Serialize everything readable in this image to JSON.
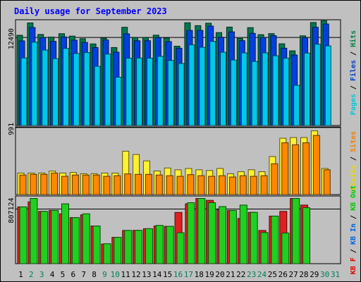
{
  "chart_data": [
    {
      "type": "bar",
      "title": "Daily usage for September 2023",
      "ylabel_parts": [
        {
          "text": "Pages",
          "color": "#00C8DC"
        },
        {
          "text": "Files",
          "color": "#0040C8"
        },
        {
          "text": "Hits",
          "color": "#008040"
        }
      ],
      "ytick": "12490",
      "ymax": 15000,
      "categories": [
        "1",
        "2",
        "3",
        "4",
        "5",
        "6",
        "7",
        "8",
        "9",
        "10",
        "11",
        "12",
        "13",
        "14",
        "15",
        "16",
        "17",
        "18",
        "19",
        "20",
        "21",
        "22",
        "23",
        "24",
        "25",
        "26",
        "27",
        "28",
        "29",
        "30",
        "31"
      ],
      "weekend_days": [
        "2",
        "3",
        "9",
        "10",
        "16",
        "17",
        "23",
        "24",
        "30",
        "31"
      ],
      "series": [
        {
          "name": "Hits",
          "color": "#007850",
          "values": [
            12800,
            14550,
            12910,
            12540,
            13020,
            12680,
            12310,
            11570,
            12390,
            11060,
            13930,
            12480,
            12480,
            12810,
            12410,
            11250,
            14570,
            14160,
            14510,
            13180,
            13960,
            12350,
            13880,
            12880,
            13030,
            11590,
            10590,
            12720,
            14610,
            14860,
            null
          ]
        },
        {
          "name": "Files",
          "color": "#0040E0",
          "values": [
            12000,
            13900,
            12450,
            11930,
            12560,
            12100,
            11780,
            11060,
            12130,
            10400,
            13000,
            12020,
            12030,
            12460,
            11900,
            10960,
            13480,
            13490,
            14100,
            12510,
            13280,
            12030,
            13070,
            12470,
            12740,
            10960,
            10000,
            12450,
            13940,
            14400,
            null
          ]
        },
        {
          "name": "Pages",
          "color": "#00C8E8",
          "values": [
            9580,
            11820,
            10700,
            9480,
            10930,
            10210,
            10340,
            8390,
            10130,
            6850,
            9550,
            9570,
            9550,
            9810,
            9220,
            8800,
            11440,
            11090,
            11920,
            10390,
            9280,
            10290,
            9080,
            10310,
            9890,
            9540,
            5690,
            10270,
            11520,
            11290,
            null
          ]
        }
      ]
    },
    {
      "type": "bar",
      "ylabel_parts": [
        {
          "text": "Visits",
          "color": "#E8D800"
        },
        {
          "text": "Sites",
          "color": "#F08000"
        }
      ],
      "ytick": "991",
      "ymax": 1000,
      "categories": [
        "1",
        "2",
        "3",
        "4",
        "5",
        "6",
        "7",
        "8",
        "9",
        "10",
        "11",
        "12",
        "13",
        "14",
        "15",
        "16",
        "17",
        "18",
        "19",
        "20",
        "21",
        "22",
        "23",
        "24",
        "25",
        "26",
        "27",
        "28",
        "29",
        "30",
        "31"
      ],
      "series": [
        {
          "name": "Visits",
          "color": "#FFF030",
          "values": [
            318,
            318,
            318,
            347,
            318,
            327,
            308,
            308,
            318,
            318,
            641,
            592,
            498,
            349,
            393,
            366,
            386,
            366,
            356,
            386,
            308,
            338,
            367,
            338,
            562,
            833,
            843,
            843,
            942,
            386,
            null
          ]
        },
        {
          "name": "Sites",
          "color": "#FF8800",
          "values": [
            289,
            299,
            299,
            318,
            270,
            289,
            289,
            289,
            270,
            279,
            306,
            299,
            299,
            289,
            279,
            270,
            295,
            279,
            270,
            279,
            260,
            279,
            270,
            279,
            455,
            765,
            736,
            765,
            874,
            366,
            null
          ]
        }
      ]
    },
    {
      "type": "bar",
      "ylabel_parts": [
        {
          "text": "KB F",
          "color": "#E00000"
        },
        {
          "text": "KB In",
          "color": "#0060E0"
        },
        {
          "text": "KB Out",
          "color": "#00C800"
        }
      ],
      "ytick": "807124",
      "ymax": 1000000,
      "categories": [
        "1",
        "2",
        "3",
        "4",
        "5",
        "6",
        "7",
        "8",
        "9",
        "10",
        "11",
        "12",
        "13",
        "14",
        "15",
        "16",
        "17",
        "18",
        "19",
        "20",
        "21",
        "22",
        "23",
        "24",
        "25",
        "26",
        "27",
        "28",
        "29",
        "30",
        "31"
      ],
      "series": [
        {
          "name": "KB F",
          "color": "#E02020",
          "values": [
            838950,
            913210,
            772830,
            786760,
            735800,
            680490,
            721280,
            556480,
            290360,
            389040,
            490850,
            492470,
            516770,
            556480,
            551820,
            756840,
            884570,
            963330,
            935340,
            795480,
            785730,
            667570,
            757910,
            490850,
            703230,
            772830,
            963330,
            865370,
            null,
            null,
            null
          ]
        },
        {
          "name": "KB Out",
          "color": "#20D020",
          "values": [
            838950,
            963330,
            772830,
            786760,
            884570,
            680490,
            736800,
            556480,
            294640,
            389040,
            490850,
            492470,
            516770,
            565860,
            551820,
            456880,
            900860,
            963330,
            900860,
            843730,
            785730,
            865370,
            757910,
            460490,
            703230,
            452690,
            963330,
            826920,
            null,
            null,
            null
          ]
        }
      ]
    }
  ],
  "day_labels": [
    "1",
    "2",
    "3",
    "4",
    "5",
    "6",
    "7",
    "8",
    "9",
    "10",
    "11",
    "12",
    "13",
    "14",
    "15",
    "16",
    "17",
    "18",
    "19",
    "20",
    "21",
    "22",
    "23",
    "24",
    "25",
    "26",
    "27",
    "28",
    "29",
    "30",
    "31"
  ]
}
